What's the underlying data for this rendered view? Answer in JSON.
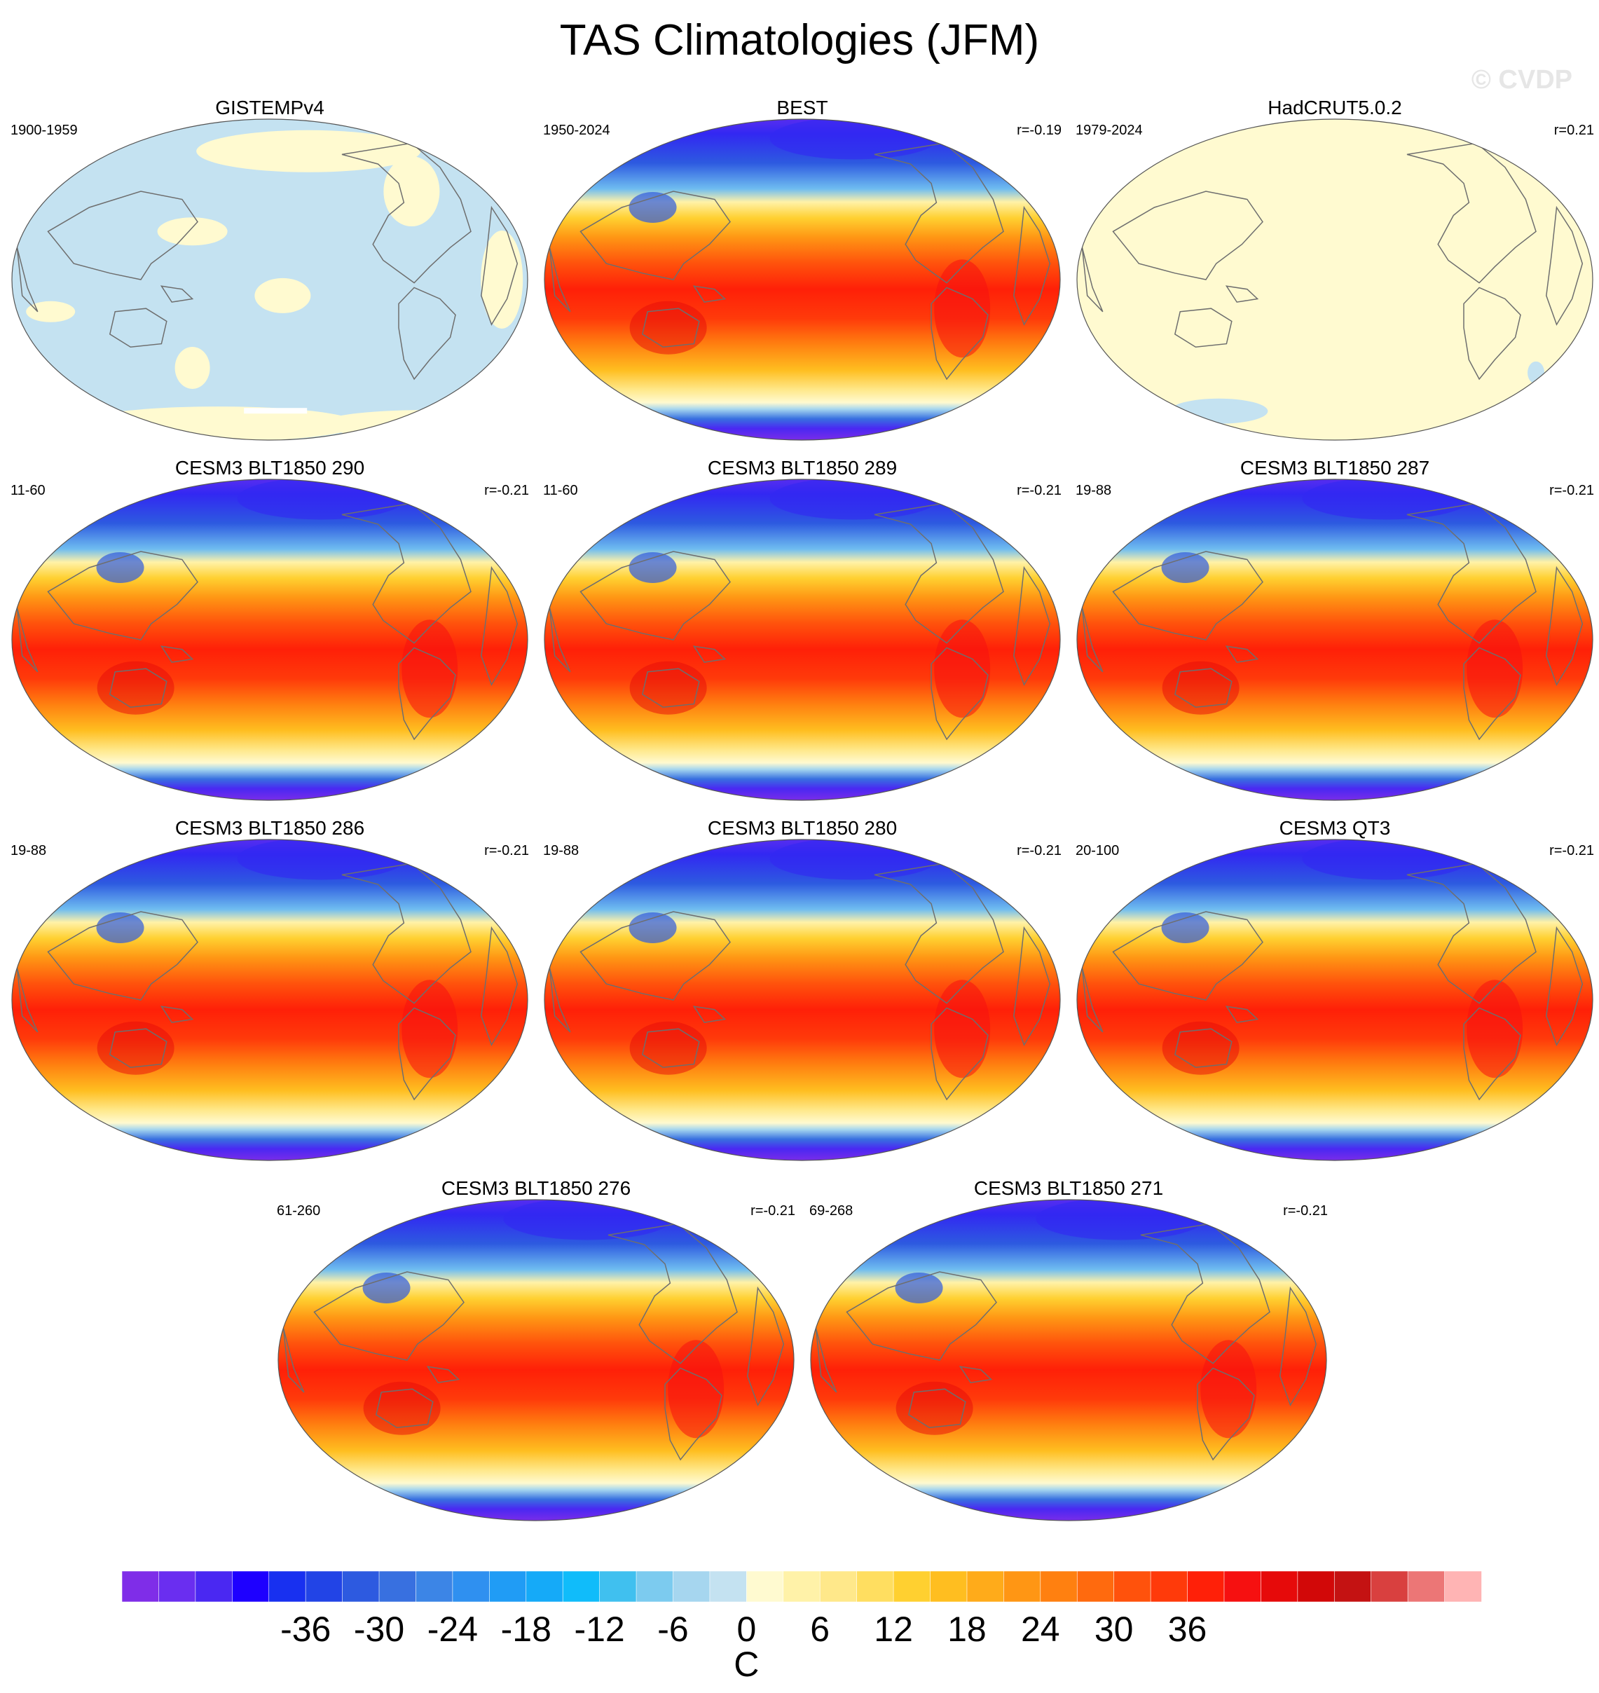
{
  "title": "TAS Climatologies (JFM)",
  "watermark": "© CVDP",
  "colorbar": {
    "unit_label": "C",
    "levels": [
      -39,
      -36,
      -33,
      -30,
      -27,
      -24,
      -21,
      -18,
      -15,
      -12,
      -9,
      -6,
      -3,
      0,
      3,
      6,
      9,
      12,
      15,
      18,
      21,
      24,
      27,
      30,
      33,
      36,
      39,
      42
    ],
    "tick_labels": [
      "-36",
      "-30",
      "-24",
      "-18",
      "-12",
      "-6",
      "0",
      "6",
      "12",
      "18",
      "24",
      "30",
      "36"
    ],
    "tick_values": [
      -36,
      -30,
      -24,
      -18,
      -12,
      -6,
      0,
      6,
      12,
      18,
      24,
      30,
      36
    ],
    "colors": [
      "#7f2de8",
      "#6a2ef0",
      "#4a28f2",
      "#1e00ff",
      "#1830f0",
      "#2244e6",
      "#2d5ae0",
      "#3870e0",
      "#3c85e6",
      "#2f90f0",
      "#209cf5",
      "#15aaf8",
      "#10bcfa",
      "#40c0ef",
      "#7ccbef",
      "#a6d6ef",
      "#c4e2f1",
      "#fffad0",
      "#fff2a8",
      "#ffe88a",
      "#ffde60",
      "#ffd030",
      "#ffbe20",
      "#ffab1a",
      "#ff9614",
      "#ff8010",
      "#ff6a0e",
      "#ff520c",
      "#ff3a0a",
      "#ff2008",
      "#f61010",
      "#e60a0a",
      "#d20808",
      "#c41212",
      "#d9403f",
      "#ec7676",
      "#ffb4b4"
    ]
  },
  "chart_data": [
    {
      "type": "heatmap",
      "title": "GISTEMPv4",
      "left_label": "1900-1959",
      "right_label": "",
      "variable": "TAS",
      "season": "JFM",
      "units": "C",
      "style": "anomaly"
    },
    {
      "type": "heatmap",
      "title": "BEST",
      "left_label": "1950-2024",
      "right_label": "r=-0.19",
      "variable": "TAS",
      "season": "JFM",
      "units": "C",
      "style": "climatology"
    },
    {
      "type": "heatmap",
      "title": "HadCRUT5.0.2",
      "left_label": "1979-2024",
      "right_label": "r=0.21",
      "variable": "TAS",
      "season": "JFM",
      "units": "C",
      "style": "flat"
    },
    {
      "type": "heatmap",
      "title": "CESM3 BLT1850 290",
      "left_label": "11-60",
      "right_label": "r=-0.21",
      "variable": "TAS",
      "season": "JFM",
      "units": "C",
      "style": "climatology"
    },
    {
      "type": "heatmap",
      "title": "CESM3 BLT1850 289",
      "left_label": "11-60",
      "right_label": "r=-0.21",
      "variable": "TAS",
      "season": "JFM",
      "units": "C",
      "style": "climatology"
    },
    {
      "type": "heatmap",
      "title": "CESM3 BLT1850 287",
      "left_label": "19-88",
      "right_label": "r=-0.21",
      "variable": "TAS",
      "season": "JFM",
      "units": "C",
      "style": "climatology"
    },
    {
      "type": "heatmap",
      "title": "CESM3 BLT1850 286",
      "left_label": "19-88",
      "right_label": "r=-0.21",
      "variable": "TAS",
      "season": "JFM",
      "units": "C",
      "style": "climatology"
    },
    {
      "type": "heatmap",
      "title": "CESM3 BLT1850 280",
      "left_label": "19-88",
      "right_label": "r=-0.21",
      "variable": "TAS",
      "season": "JFM",
      "units": "C",
      "style": "climatology"
    },
    {
      "type": "heatmap",
      "title": "CESM3 QT3",
      "left_label": "20-100",
      "right_label": "r=-0.21",
      "variable": "TAS",
      "season": "JFM",
      "units": "C",
      "style": "climatology"
    },
    {
      "type": "heatmap",
      "title": "CESM3 BLT1850 276",
      "left_label": "61-260",
      "right_label": "r=-0.21",
      "variable": "TAS",
      "season": "JFM",
      "units": "C",
      "style": "climatology"
    },
    {
      "type": "heatmap",
      "title": "CESM3 BLT1850 271",
      "left_label": "69-268",
      "right_label": "r=-0.21",
      "variable": "TAS",
      "season": "JFM",
      "units": "C",
      "style": "climatology"
    }
  ]
}
